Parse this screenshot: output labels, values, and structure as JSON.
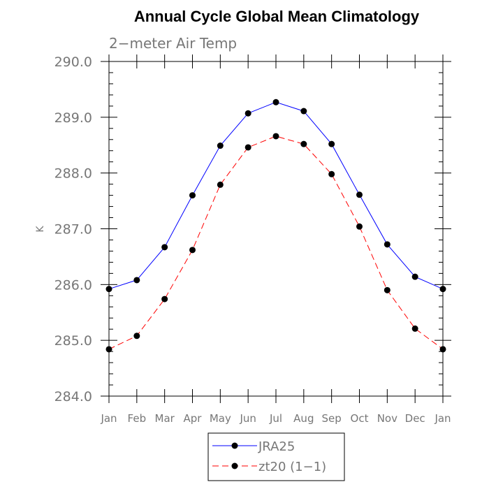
{
  "chart_data": {
    "type": "line",
    "title": "Annual Cycle Global Mean Climatology",
    "subtitle": "2−meter Air Temp",
    "xlabel": "",
    "ylabel": "K",
    "categories": [
      "Jan",
      "Feb",
      "Mar",
      "Apr",
      "May",
      "Jun",
      "Jul",
      "Aug",
      "Sep",
      "Oct",
      "Nov",
      "Dec",
      "Jan"
    ],
    "ylim": [
      284.0,
      290.0
    ],
    "yticks": [
      "284.0",
      "285.0",
      "286.0",
      "287.0",
      "288.0",
      "289.0",
      "290.0"
    ],
    "grid": false,
    "legend_position": "bottom-center",
    "series": [
      {
        "name": "JRA25",
        "color": "#0000ff",
        "dash": "solid",
        "marker": "filled-circle",
        "values": [
          285.92,
          286.08,
          286.67,
          287.6,
          288.49,
          289.07,
          289.27,
          289.11,
          288.52,
          287.61,
          286.72,
          286.14,
          285.92
        ]
      },
      {
        "name": "zt20 (1−1)",
        "color": "#ff0000",
        "dash": "dashed",
        "marker": "filled-circle",
        "values": [
          284.84,
          285.08,
          285.74,
          286.62,
          287.79,
          288.46,
          288.66,
          288.52,
          287.98,
          287.04,
          285.9,
          285.21,
          284.84
        ]
      }
    ]
  }
}
